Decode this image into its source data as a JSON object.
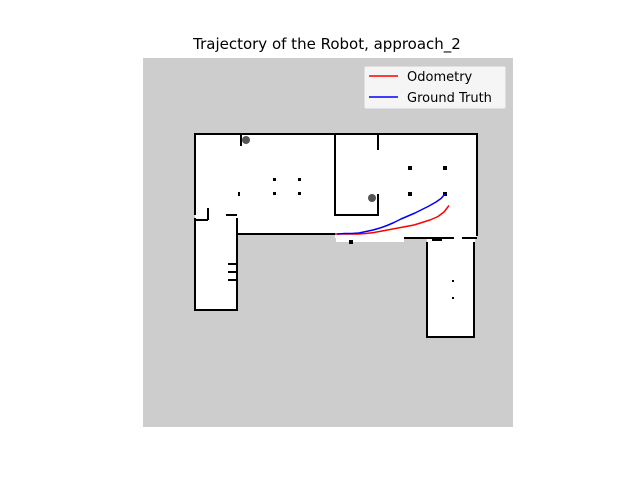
{
  "chart_data": {
    "type": "line",
    "title": "Trajectory of the Robot, approach_2",
    "xlabel": "",
    "ylabel": "",
    "grid": false,
    "axes_visible": false,
    "legend_placement": "top-right",
    "background": "occupancy-grid-map",
    "series": [
      {
        "name": "Odometry",
        "color": "#ff0000",
        "x": [
          335,
          342,
          350,
          358,
          366,
          374,
          382,
          390,
          398,
          406,
          414,
          422,
          430,
          438,
          444,
          449
        ],
        "y": [
          234,
          234,
          234,
          234,
          233.5,
          232.5,
          231,
          229.5,
          228,
          226.5,
          225,
          222.5,
          220,
          216.5,
          212,
          205.5
        ]
      },
      {
        "name": "Ground Truth",
        "color": "#0000ff",
        "x": [
          337,
          345,
          352,
          359,
          366,
          373,
          380,
          387,
          394,
          401,
          408,
          415,
          422,
          429,
          436,
          441,
          445
        ],
        "y": [
          234,
          233.5,
          233.5,
          233,
          231.5,
          230,
          228,
          225.5,
          222.5,
          219,
          216,
          213,
          209.5,
          206,
          202,
          198.5,
          194
        ]
      }
    ]
  },
  "colors": {
    "map_unknown": "#cdcdcd",
    "map_free": "#ffffff",
    "map_wall": "#000000"
  }
}
